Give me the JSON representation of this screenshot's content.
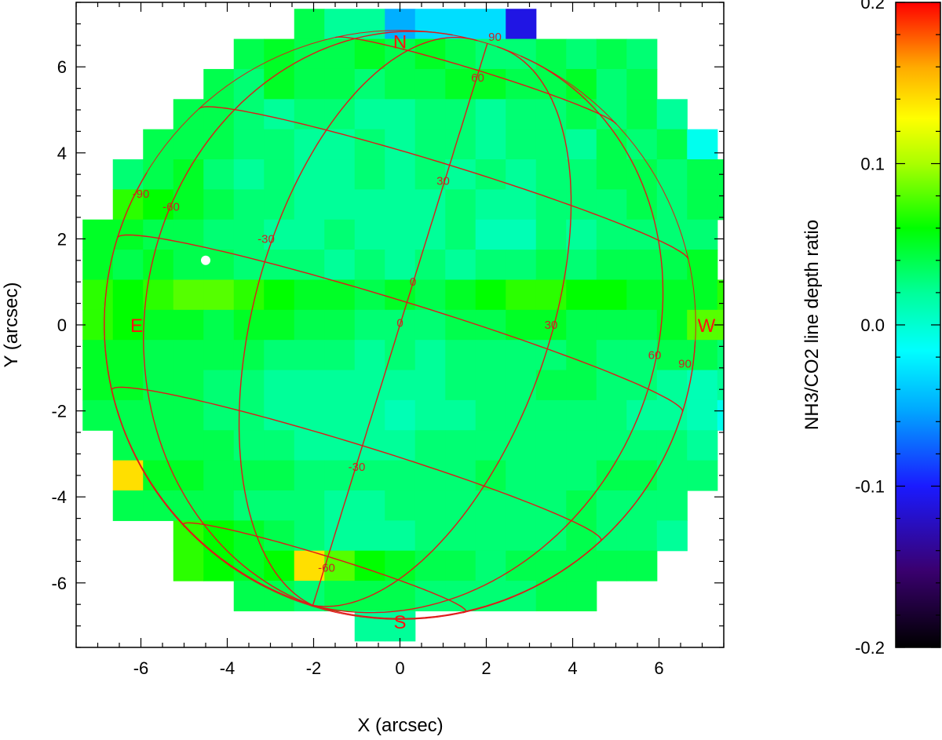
{
  "chart_data": {
    "type": "heatmap",
    "title": "",
    "xlabel": "X (arcsec)",
    "ylabel": "Y (arcsec)",
    "xlim": [
      -7.5,
      7.5
    ],
    "ylim": [
      -7.5,
      7.5
    ],
    "xticks": [
      -6,
      -4,
      -2,
      0,
      2,
      4,
      6
    ],
    "yticks": [
      -6,
      -4,
      -2,
      0,
      2,
      4,
      6
    ],
    "x_tick_labels": [
      "-6",
      "-4",
      "-2",
      "0",
      "2",
      "4",
      "6"
    ],
    "y_tick_labels": [
      "-6",
      "-4",
      "-2",
      "0",
      "2",
      "4",
      "6"
    ],
    "pixel_size_arcsec": 0.7,
    "colorbar": {
      "label": "NH3/CO2 line depth ratio",
      "range": [
        -0.2,
        0.2
      ],
      "ticks": [
        -0.2,
        -0.1,
        0.0,
        0.1,
        0.2
      ],
      "tick_labels": [
        "-0.2",
        "-0.1",
        "0.0",
        "0.1",
        "0.2"
      ],
      "colormap": "rainbow"
    },
    "grid": {
      "x_start": -7.35,
      "y_start": 7.35,
      "rows": [
        {
          "y": 7.0,
          "x0": -2.45,
          "values": [
            0.04,
            0.02,
            0.02,
            -0.05,
            -0.03,
            -0.03,
            -0.03,
            -0.11
          ]
        },
        {
          "y": 6.3,
          "x0": -3.85,
          "values": [
            0.04,
            0.05,
            0.04,
            0.04,
            0.05,
            0.04,
            0.05,
            0.04,
            0.03,
            0.03,
            0.04,
            0.03,
            0.04,
            0.03
          ]
        },
        {
          "y": 5.6,
          "x0": -4.55,
          "values": [
            0.04,
            0.03,
            0.05,
            0.04,
            0.04,
            0.03,
            0.04,
            0.04,
            0.05,
            0.05,
            0.04,
            0.04,
            0.05,
            0.03,
            0.04
          ]
        },
        {
          "y": 4.9,
          "x0": -5.25,
          "values": [
            0.04,
            0.04,
            0.03,
            0.02,
            0.03,
            0.03,
            0.02,
            0.02,
            0.03,
            0.03,
            0.02,
            0.03,
            0.03,
            0.04,
            0.03,
            0.04,
            0.02
          ]
        },
        {
          "y": 4.2,
          "x0": -5.95,
          "values": [
            0.04,
            0.04,
            0.04,
            0.03,
            0.03,
            0.02,
            0.02,
            0.03,
            0.02,
            0.03,
            0.03,
            0.02,
            0.03,
            0.03,
            0.02,
            0.04,
            0.03,
            0.04,
            -0.01
          ]
        },
        {
          "y": 3.5,
          "x0": -6.65,
          "values": [
            0.03,
            0.04,
            0.05,
            0.03,
            0.02,
            0.03,
            0.02,
            0.02,
            0.03,
            0.02,
            0.03,
            0.02,
            0.03,
            0.02,
            0.03,
            0.03,
            0.04,
            0.04,
            0.03,
            0.04,
            0.04
          ]
        },
        {
          "y": 2.8,
          "x0": -6.65,
          "values": [
            0.07,
            0.06,
            0.05,
            0.04,
            0.03,
            0.03,
            0.02,
            0.02,
            0.02,
            0.02,
            0.02,
            0.03,
            0.02,
            0.02,
            0.03,
            0.03,
            0.03,
            0.04,
            0.03,
            0.04,
            0.04
          ]
        },
        {
          "y": 2.1,
          "x0": -7.35,
          "values": [
            0.05,
            0.05,
            0.04,
            0.04,
            0.03,
            0.03,
            0.02,
            0.02,
            0.03,
            0.02,
            0.02,
            0.02,
            0.03,
            0.01,
            0.01,
            0.03,
            0.02,
            0.03,
            0.03,
            0.03,
            0.03
          ]
        },
        {
          "y": 1.4,
          "x0": -7.35,
          "values": [
            0.05,
            0.04,
            0.05,
            0.04,
            0.04,
            0.03,
            0.03,
            0.03,
            0.02,
            0.03,
            0.02,
            0.03,
            0.02,
            0.03,
            0.03,
            0.04,
            0.03,
            0.04,
            0.04,
            0.04,
            0.05
          ]
        },
        {
          "y": 0.7,
          "x0": -7.35,
          "values": [
            0.07,
            0.06,
            0.07,
            0.08,
            0.08,
            0.07,
            0.06,
            0.05,
            0.05,
            0.04,
            0.05,
            0.04,
            0.05,
            0.06,
            0.07,
            0.07,
            0.06,
            0.06,
            0.05,
            0.05,
            0.05,
            0.07
          ]
        },
        {
          "y": 0.0,
          "x0": -7.35,
          "values": [
            0.07,
            0.06,
            0.05,
            0.05,
            0.04,
            0.05,
            0.05,
            0.04,
            0.04,
            0.03,
            0.03,
            0.03,
            0.04,
            0.04,
            0.05,
            0.05,
            0.04,
            0.04,
            0.04,
            0.05,
            0.08,
            0.08
          ]
        },
        {
          "y": -0.7,
          "x0": -7.35,
          "values": [
            0.05,
            0.05,
            0.04,
            0.04,
            0.04,
            0.04,
            0.03,
            0.03,
            0.03,
            0.02,
            0.03,
            0.02,
            0.03,
            0.03,
            0.03,
            0.03,
            0.04,
            0.03,
            0.03,
            0.04,
            0.04,
            0.03
          ]
        },
        {
          "y": -1.4,
          "x0": -7.35,
          "values": [
            0.05,
            0.05,
            0.04,
            0.04,
            0.03,
            0.03,
            0.02,
            0.02,
            0.02,
            0.02,
            0.02,
            0.02,
            0.03,
            0.03,
            0.03,
            0.04,
            0.04,
            0.03,
            0.03,
            0.02,
            0.01,
            0.02
          ]
        },
        {
          "y": -2.1,
          "x0": -7.35,
          "values": [
            0.04,
            0.04,
            0.04,
            0.04,
            0.03,
            0.03,
            0.02,
            0.02,
            0.02,
            0.02,
            0.01,
            0.02,
            0.02,
            0.03,
            0.03,
            0.03,
            0.03,
            0.03,
            0.02,
            0.02,
            0.01,
            -0.01
          ]
        },
        {
          "y": -2.8,
          "x0": -6.65,
          "values": [
            0.04,
            0.04,
            0.04,
            0.04,
            0.03,
            0.03,
            0.02,
            0.02,
            0.02,
            0.02,
            0.03,
            0.03,
            0.03,
            0.03,
            0.03,
            0.03,
            0.03,
            0.03,
            0.03,
            0.02
          ]
        },
        {
          "y": -3.5,
          "x0": -6.65,
          "values": [
            0.14,
            0.05,
            0.05,
            0.04,
            0.04,
            0.04,
            0.03,
            0.03,
            0.03,
            0.03,
            0.03,
            0.03,
            0.04,
            0.03,
            0.03,
            0.03,
            0.04,
            0.04,
            0.03,
            0.03
          ]
        },
        {
          "y": -4.2,
          "x0": -6.65,
          "values": [
            0.04,
            0.04,
            0.04,
            0.04,
            0.03,
            0.03,
            0.03,
            0.02,
            0.02,
            0.03,
            0.03,
            0.03,
            0.03,
            0.03,
            0.03,
            0.04,
            0.03,
            0.03,
            0.03
          ]
        },
        {
          "y": -4.9,
          "x0": -5.25,
          "values": [
            0.07,
            0.06,
            0.05,
            0.04,
            0.03,
            0.02,
            0.02,
            0.02,
            0.03,
            0.03,
            0.03,
            0.03,
            0.03,
            0.04,
            0.03,
            0.03,
            0.02
          ]
        },
        {
          "y": -5.6,
          "x0": -5.25,
          "values": [
            0.07,
            0.06,
            0.05,
            0.06,
            0.14,
            0.08,
            0.06,
            0.05,
            0.04,
            0.04,
            0.03,
            0.04,
            0.04,
            0.04,
            0.04,
            0.04
          ]
        },
        {
          "y": -6.3,
          "x0": -3.85,
          "values": [
            0.04,
            0.04,
            0.03,
            0.04,
            0.04,
            0.04,
            0.03,
            0.03,
            0.03,
            0.03,
            0.04,
            0.04
          ]
        },
        {
          "y": -7.0,
          "x0": -1.05,
          "values": [
            0.02,
            0.02
          ]
        }
      ]
    },
    "disk": {
      "center": [
        0.0,
        0.0
      ],
      "radius_arcsec": 6.85
    },
    "white_marker": {
      "x": -4.5,
      "y": 1.5
    },
    "compass_labels": [
      {
        "text": "N",
        "x": 0.0,
        "y": 6.6
      },
      {
        "text": "S",
        "x": 0.0,
        "y": -6.9
      },
      {
        "text": "E",
        "x": -6.1,
        "y": 0.0
      },
      {
        "text": "W",
        "x": 7.1,
        "y": 0.0
      }
    ],
    "latitude_labels": [
      {
        "text": "60",
        "x": 1.8,
        "y": 5.75
      },
      {
        "text": "30",
        "x": 1.0,
        "y": 3.35
      },
      {
        "text": "0",
        "x": 0.0,
        "y": 0.05
      },
      {
        "text": "-30",
        "x": -1.0,
        "y": -3.3
      },
      {
        "text": "-60",
        "x": -1.7,
        "y": -5.65
      }
    ],
    "longitude_labels": [
      {
        "text": "-90",
        "x": -6.0,
        "y": 3.05
      },
      {
        "text": "-60",
        "x": -5.3,
        "y": 2.75
      },
      {
        "text": "-30",
        "x": -3.1,
        "y": 2.0
      },
      {
        "text": "0",
        "x": 0.3,
        "y": 1.0
      },
      {
        "text": "30",
        "x": 3.5,
        "y": 0.0
      },
      {
        "text": "60",
        "x": 5.9,
        "y": -0.7
      },
      {
        "text": "90",
        "x": 6.6,
        "y": -0.9
      },
      {
        "text": "90",
        "x": 2.2,
        "y": 6.7
      }
    ]
  }
}
